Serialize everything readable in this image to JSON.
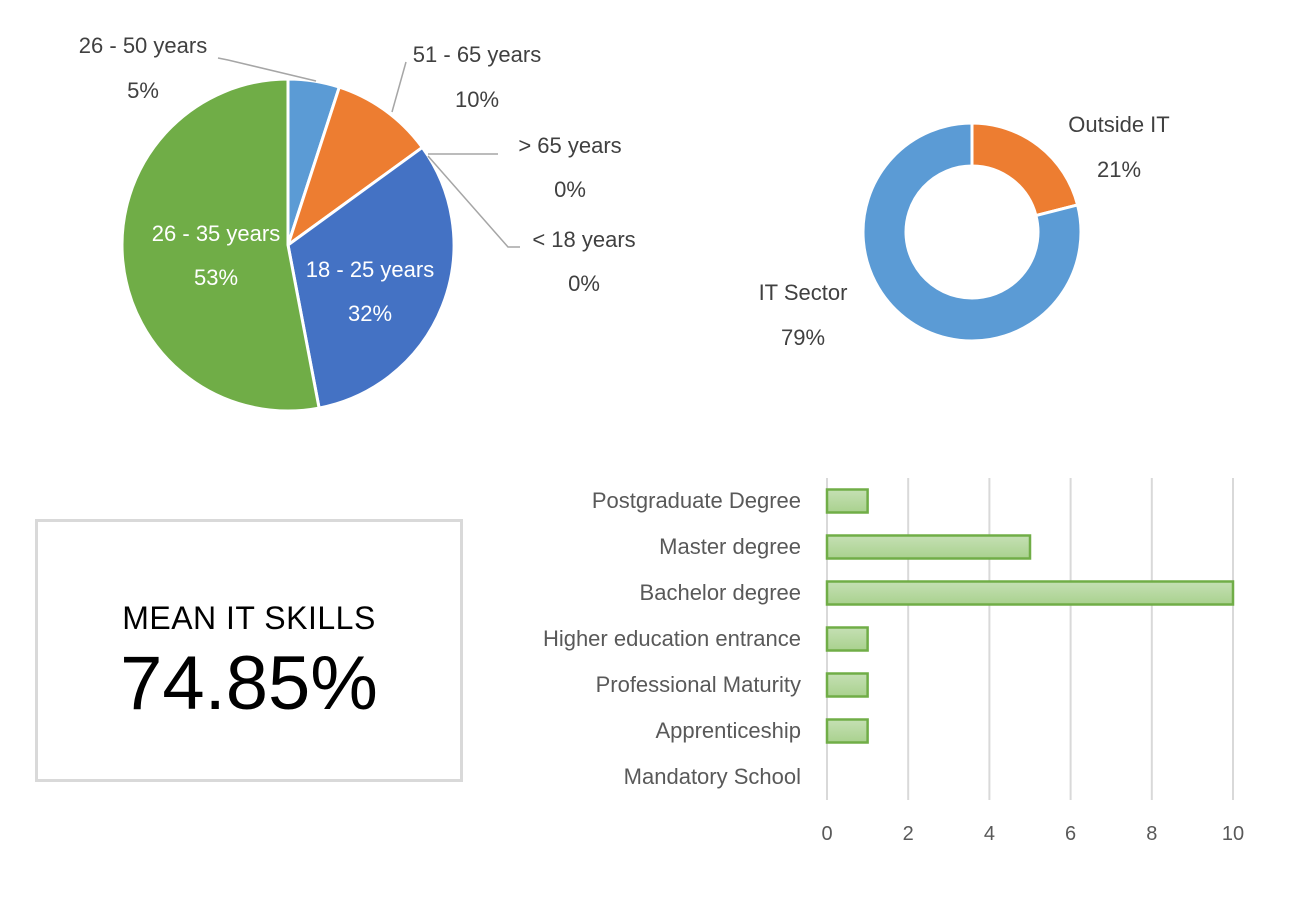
{
  "chart_data": [
    {
      "type": "pie",
      "title": "",
      "slices": [
        {
          "label": "26 - 50 years",
          "value": 5,
          "value_label": "5%",
          "color": "#5B9BD5"
        },
        {
          "label": "51 - 65 years",
          "value": 10,
          "value_label": "10%",
          "color": "#ED7D31"
        },
        {
          "label": "> 65 years",
          "value": 0,
          "value_label": "0%",
          "color": "#A5A5A5"
        },
        {
          "label": "< 18 years",
          "value": 0,
          "value_label": "0%",
          "color": "#FFC000"
        },
        {
          "label": "18 - 25 years",
          "value": 32,
          "value_label": "32%",
          "color": "#4472C4"
        },
        {
          "label": "26 - 35 years",
          "value": 53,
          "value_label": "53%",
          "color": "#70AD47"
        }
      ]
    },
    {
      "type": "pie",
      "subtype": "donut",
      "title": "",
      "slices": [
        {
          "label": "Outside IT",
          "value": 21,
          "value_label": "21%",
          "color": "#ED7D31"
        },
        {
          "label": "IT Sector",
          "value": 79,
          "value_label": "79%",
          "color": "#5B9BD5"
        }
      ]
    },
    {
      "type": "bar",
      "orientation": "horizontal",
      "title": "",
      "categories": [
        "Postgraduate Degree",
        "Master degree",
        "Bachelor degree",
        "Higher education entrance",
        "Professional Maturity",
        "Apprenticeship",
        "Mandatory School"
      ],
      "values": [
        1,
        5,
        10,
        1,
        1,
        1,
        0
      ],
      "xlim": [
        0,
        10
      ],
      "xticks": [
        0,
        2,
        4,
        6,
        8,
        10
      ],
      "grid": true,
      "bar_color": "#A9D18E",
      "bar_border": "#70AD47"
    }
  ],
  "kpi": {
    "title": "MEAN IT SKILLS",
    "value": "74.85%"
  }
}
